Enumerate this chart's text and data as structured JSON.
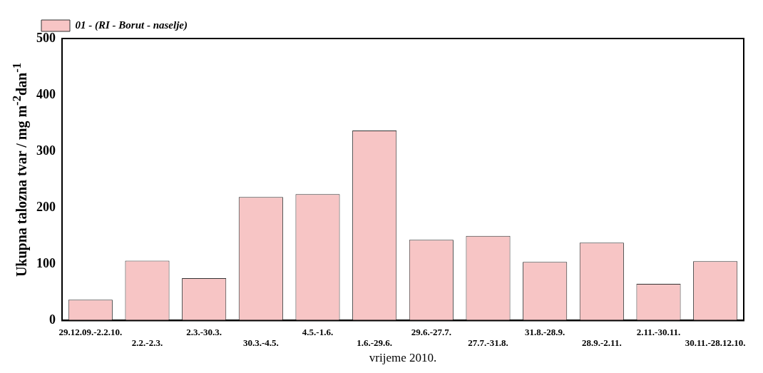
{
  "chart_data": {
    "type": "bar",
    "xlabel": "vrijeme 2010.",
    "ylabel": "Ukupna talozna tvar / mg m$^{-2}$dan$^{-1}$",
    "categories": [
      "29.12.09.-2.2.10.",
      "2.2.-2.3.",
      "2.3.-30.3.",
      "30.3.-4.5.",
      "4.5.-1.6.",
      "1.6.-29.6.",
      "29.6.-27.7.",
      "27.7.-31.8.",
      "31.8.-28.9.",
      "28.9.-2.11.",
      "2.11.-30.11.",
      "30.11.-28.12.10."
    ],
    "series": [
      {
        "name": "01 - (RI - Borut - naselje)",
        "color": "#f7c5c5",
        "values": [
          37,
          106,
          75,
          219,
          224,
          337,
          143,
          150,
          104,
          138,
          65,
          105
        ]
      }
    ],
    "ylim": [
      0,
      500
    ],
    "yticks": [
      0,
      100,
      200,
      300,
      400,
      500
    ],
    "grid": false,
    "legend": "top left"
  }
}
